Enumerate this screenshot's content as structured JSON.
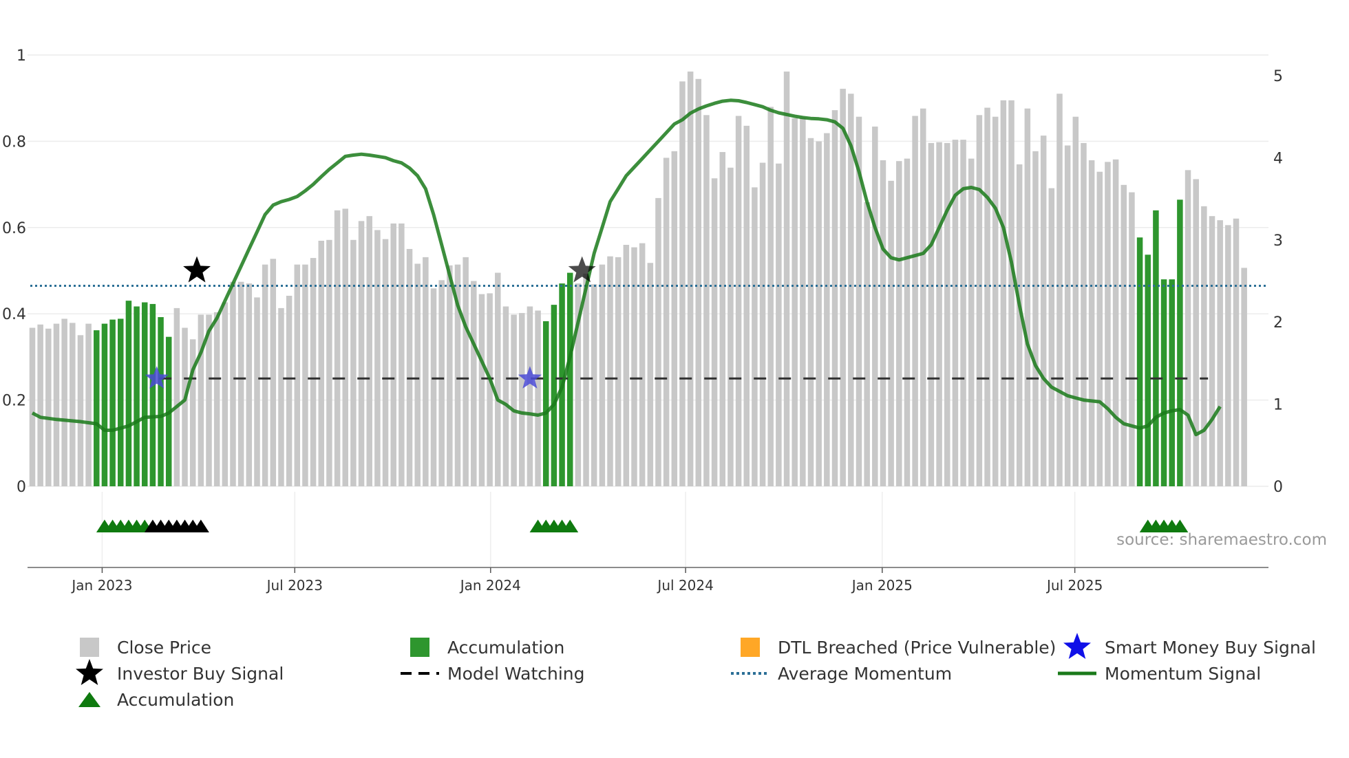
{
  "chart_data": {
    "type": "bar",
    "left_axis": {
      "range": [
        0,
        1
      ],
      "ticks": [
        "0",
        "0.2",
        "0.4",
        "0.6",
        "0.8",
        "1"
      ]
    },
    "right_axis": {
      "range": [
        0,
        5
      ],
      "ticks": [
        "0",
        "1",
        "2",
        "3",
        "4",
        "5"
      ]
    },
    "x_axis": {
      "start_week": 0,
      "end_week": 146,
      "ticks": [
        {
          "label": "Jan 2023",
          "week": 8.7
        },
        {
          "label": "Jul 2023",
          "week": 32.7
        },
        {
          "label": "Jan 2024",
          "week": 57.1
        },
        {
          "label": "Jul 2024",
          "week": 81.4
        },
        {
          "label": "Jan 2025",
          "week": 105.9
        },
        {
          "label": "Jul 2025",
          "week": 129.9
        }
      ]
    },
    "close_price_weekly": [
      1.93,
      1.97,
      1.92,
      1.98,
      2.04,
      1.99,
      1.84,
      1.98,
      1.9,
      1.98,
      2.03,
      2.04,
      2.26,
      2.19,
      2.24,
      2.22,
      2.06,
      1.82,
      2.17,
      1.93,
      1.79,
      2.09,
      2.09,
      2.12,
      2.24,
      2.49,
      2.49,
      2.47,
      2.3,
      2.7,
      2.77,
      2.17,
      2.32,
      2.7,
      2.7,
      2.78,
      2.99,
      3.0,
      3.36,
      3.38,
      3.0,
      3.23,
      3.29,
      3.12,
      3.01,
      3.2,
      3.2,
      2.89,
      2.71,
      2.79,
      2.41,
      2.51,
      2.69,
      2.7,
      2.79,
      2.5,
      2.34,
      2.35,
      2.6,
      2.19,
      2.09,
      2.11,
      2.19,
      2.14,
      2.01,
      2.21,
      2.47,
      2.6,
      2.47,
      2.59,
      2.46,
      2.7,
      2.8,
      2.79,
      2.94,
      2.91,
      2.96,
      2.72,
      3.51,
      4.0,
      4.08,
      4.93,
      5.05,
      4.96,
      4.52,
      3.75,
      4.07,
      3.88,
      4.51,
      4.39,
      3.64,
      3.94,
      4.62,
      3.93,
      5.05,
      4.48,
      4.49,
      4.24,
      4.2,
      4.3,
      4.58,
      4.84,
      4.78,
      4.5,
      3.46,
      4.38,
      3.97,
      3.72,
      3.96,
      3.99,
      4.51,
      4.6,
      4.18,
      4.19,
      4.18,
      4.22,
      4.22,
      3.99,
      4.52,
      4.61,
      4.5,
      4.7,
      4.7,
      3.92,
      4.6,
      4.08,
      4.27,
      3.63,
      4.78,
      4.15,
      4.5,
      4.18,
      3.97,
      3.83,
      3.95,
      3.98,
      3.67,
      3.58,
      3.03,
      2.82,
      3.36,
      2.52,
      2.52,
      3.49,
      3.85,
      3.74,
      3.41,
      3.29,
      3.24,
      3.18,
      3.26,
      2.66
    ],
    "accumulation_weeks": [
      8,
      9,
      10,
      11,
      12,
      13,
      14,
      15,
      16,
      17,
      64,
      65,
      66,
      67,
      138,
      139,
      140,
      141,
      142,
      143
    ],
    "momentum_signal": [
      [
        0,
        0.17
      ],
      [
        1,
        0.16
      ],
      [
        3,
        0.155
      ],
      [
        6,
        0.15
      ],
      [
        8,
        0.145
      ],
      [
        9,
        0.13
      ],
      [
        10,
        0.13
      ],
      [
        11,
        0.135
      ],
      [
        12,
        0.14
      ],
      [
        13,
        0.15
      ],
      [
        14,
        0.16
      ],
      [
        16,
        0.162
      ],
      [
        17,
        0.17
      ],
      [
        18,
        0.185
      ],
      [
        19,
        0.2
      ],
      [
        20,
        0.27
      ],
      [
        21,
        0.31
      ],
      [
        22,
        0.36
      ],
      [
        23,
        0.39
      ],
      [
        24,
        0.43
      ],
      [
        25,
        0.47
      ],
      [
        26,
        0.51
      ],
      [
        27,
        0.55
      ],
      [
        28,
        0.59
      ],
      [
        29,
        0.63
      ],
      [
        30,
        0.652
      ],
      [
        31,
        0.66
      ],
      [
        32,
        0.665
      ],
      [
        33,
        0.672
      ],
      [
        34,
        0.685
      ],
      [
        35,
        0.7
      ],
      [
        36,
        0.718
      ],
      [
        37,
        0.735
      ],
      [
        38,
        0.75
      ],
      [
        39,
        0.765
      ],
      [
        40,
        0.768
      ],
      [
        41,
        0.77
      ],
      [
        42,
        0.768
      ],
      [
        43,
        0.765
      ],
      [
        44,
        0.762
      ],
      [
        45,
        0.755
      ],
      [
        46,
        0.75
      ],
      [
        47,
        0.738
      ],
      [
        48,
        0.72
      ],
      [
        49,
        0.69
      ],
      [
        50,
        0.63
      ],
      [
        51,
        0.56
      ],
      [
        52,
        0.49
      ],
      [
        53,
        0.42
      ],
      [
        54,
        0.37
      ],
      [
        55,
        0.33
      ],
      [
        56,
        0.29
      ],
      [
        57,
        0.25
      ],
      [
        58,
        0.2
      ],
      [
        59,
        0.19
      ],
      [
        60,
        0.175
      ],
      [
        61,
        0.17
      ],
      [
        62,
        0.168
      ],
      [
        63,
        0.165
      ],
      [
        64,
        0.17
      ],
      [
        65,
        0.19
      ],
      [
        66,
        0.23
      ],
      [
        67,
        0.3
      ],
      [
        68,
        0.38
      ],
      [
        69,
        0.46
      ],
      [
        70,
        0.54
      ],
      [
        71,
        0.6
      ],
      [
        72,
        0.66
      ],
      [
        73,
        0.69
      ],
      [
        74,
        0.72
      ],
      [
        75,
        0.74
      ],
      [
        76,
        0.76
      ],
      [
        77,
        0.78
      ],
      [
        78,
        0.8
      ],
      [
        79,
        0.82
      ],
      [
        80,
        0.84
      ],
      [
        81,
        0.85
      ],
      [
        82,
        0.865
      ],
      [
        83,
        0.875
      ],
      [
        84,
        0.882
      ],
      [
        85,
        0.888
      ],
      [
        86,
        0.893
      ],
      [
        87,
        0.895
      ],
      [
        88,
        0.894
      ],
      [
        89,
        0.89
      ],
      [
        90,
        0.885
      ],
      [
        91,
        0.88
      ],
      [
        92,
        0.872
      ],
      [
        93,
        0.866
      ],
      [
        94,
        0.862
      ],
      [
        95,
        0.858
      ],
      [
        96,
        0.855
      ],
      [
        97,
        0.853
      ],
      [
        98,
        0.852
      ],
      [
        99,
        0.85
      ],
      [
        100,
        0.845
      ],
      [
        101,
        0.83
      ],
      [
        102,
        0.79
      ],
      [
        103,
        0.73
      ],
      [
        104,
        0.66
      ],
      [
        105,
        0.6
      ],
      [
        106,
        0.55
      ],
      [
        107,
        0.53
      ],
      [
        108,
        0.525
      ],
      [
        109,
        0.53
      ],
      [
        110,
        0.535
      ],
      [
        111,
        0.54
      ],
      [
        112,
        0.56
      ],
      [
        113,
        0.6
      ],
      [
        114,
        0.64
      ],
      [
        115,
        0.675
      ],
      [
        116,
        0.69
      ],
      [
        117,
        0.693
      ],
      [
        118,
        0.688
      ],
      [
        119,
        0.67
      ],
      [
        120,
        0.645
      ],
      [
        121,
        0.6
      ],
      [
        122,
        0.52
      ],
      [
        123,
        0.42
      ],
      [
        124,
        0.33
      ],
      [
        125,
        0.28
      ],
      [
        126,
        0.25
      ],
      [
        127,
        0.23
      ],
      [
        128,
        0.22
      ],
      [
        129,
        0.21
      ],
      [
        130,
        0.205
      ],
      [
        131,
        0.2
      ],
      [
        132,
        0.198
      ],
      [
        133,
        0.196
      ],
      [
        134,
        0.18
      ],
      [
        135,
        0.16
      ],
      [
        136,
        0.145
      ],
      [
        137,
        0.14
      ],
      [
        138,
        0.135
      ],
      [
        139,
        0.14
      ],
      [
        140,
        0.16
      ],
      [
        141,
        0.17
      ],
      [
        142,
        0.175
      ],
      [
        143,
        0.178
      ],
      [
        144,
        0.165
      ],
      [
        145,
        0.12
      ],
      [
        146,
        0.13
      ],
      [
        147,
        0.155
      ],
      [
        148,
        0.185
      ]
    ],
    "average_momentum": 0.465,
    "model_watching_level": 0.25,
    "investor_buy_signals": [
      {
        "week": 20.5,
        "value": 0.5
      },
      {
        "week": 68.5,
        "value": 0.5
      }
    ],
    "smart_money_buy_signals": [
      {
        "week": 15.5,
        "value": 0.25
      },
      {
        "week": 62,
        "value": 0.25
      }
    ],
    "accumulation_triangles_green": [
      9,
      10,
      11,
      12,
      13,
      14,
      63,
      64,
      65,
      66,
      67,
      139,
      140,
      141,
      142,
      143
    ],
    "accumulation_triangles_black": [
      15,
      16,
      17,
      18,
      19,
      20,
      21
    ]
  },
  "source_text": "source: sharemaestro.com",
  "colors": {
    "close_price": "#c8c8c8",
    "accumulation_bar": "#2e962e",
    "momentum_line": "#1a7a1a",
    "average_momentum": "#2b6f96",
    "model_watching": "#303030",
    "smart_money_star": "#4a4ad6",
    "investor_star": "#000000",
    "dtl": "#ffa726",
    "triangle_green": "#0f7a0f",
    "triangle_black": "#000000"
  },
  "legend": [
    {
      "label": "Close Price",
      "icon": "gray-square"
    },
    {
      "label": "Accumulation",
      "icon": "green-square"
    },
    {
      "label": "DTL Breached (Price Vulnerable)",
      "icon": "orange-square"
    },
    {
      "label": "Smart Money Buy Signal",
      "icon": "blue-star"
    },
    {
      "label": "Investor Buy Signal",
      "icon": "black-star"
    },
    {
      "label": "Model Watching",
      "icon": "black-dashed-line"
    },
    {
      "label": "Average Momentum",
      "icon": "blue-dotted-line"
    },
    {
      "label": "Momentum Signal",
      "icon": "green-solid-line"
    },
    {
      "label": "Accumulation",
      "icon": "green-triangle"
    }
  ]
}
